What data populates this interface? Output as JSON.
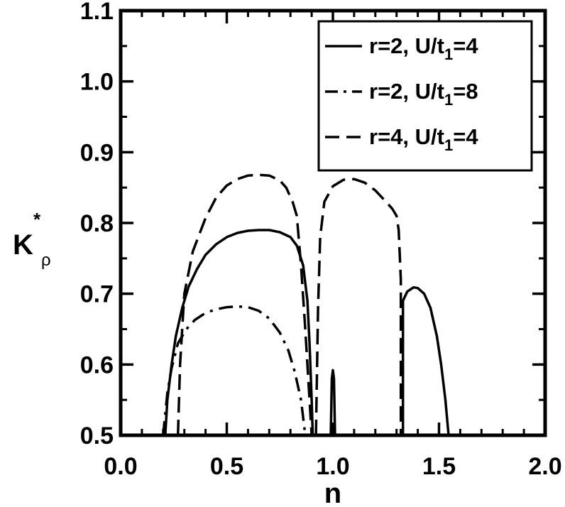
{
  "chart_data": {
    "type": "line",
    "xlabel": "n",
    "ylabel": {
      "main": "K",
      "sup": "*",
      "sub": "ρ"
    },
    "xlim": [
      0.0,
      2.0
    ],
    "ylim": [
      0.5,
      1.1
    ],
    "x_ticks": [
      {
        "value": 0.0,
        "label": "0.0"
      },
      {
        "value": 0.5,
        "label": "0.5"
      },
      {
        "value": 1.0,
        "label": "1.0"
      },
      {
        "value": 1.5,
        "label": "1.5"
      },
      {
        "value": 2.0,
        "label": "2.0"
      }
    ],
    "y_ticks": [
      {
        "value": 0.5,
        "label": "0.5"
      },
      {
        "value": 0.6,
        "label": "0.6"
      },
      {
        "value": 0.7,
        "label": "0.7"
      },
      {
        "value": 0.8,
        "label": "0.8"
      },
      {
        "value": 0.9,
        "label": "0.9"
      },
      {
        "value": 1.0,
        "label": "1.0"
      },
      {
        "value": 1.1,
        "label": "1.1"
      }
    ],
    "x_minor_step": 0.1,
    "y_minor_step": 0.05,
    "grid": false,
    "legend_position": "top-right",
    "series": [
      {
        "name": {
          "main": "r=2, U/t",
          "sub": "1",
          "tail": "=4"
        },
        "style": "solid",
        "segments": [
          [
            [
              0.21,
              0.5
            ],
            [
              0.22,
              0.55
            ],
            [
              0.24,
              0.6
            ],
            [
              0.26,
              0.64
            ],
            [
              0.29,
              0.68
            ],
            [
              0.32,
              0.71
            ],
            [
              0.36,
              0.735
            ],
            [
              0.4,
              0.755
            ],
            [
              0.45,
              0.77
            ],
            [
              0.5,
              0.78
            ],
            [
              0.55,
              0.786
            ],
            [
              0.6,
              0.789
            ],
            [
              0.65,
              0.79
            ],
            [
              0.7,
              0.79
            ],
            [
              0.75,
              0.787
            ],
            [
              0.8,
              0.78
            ],
            [
              0.83,
              0.768
            ],
            [
              0.86,
              0.74
            ],
            [
              0.88,
              0.69
            ],
            [
              0.89,
              0.63
            ],
            [
              0.9,
              0.55
            ],
            [
              0.905,
              0.5
            ]
          ],
          [
            [
              0.99,
              0.5
            ],
            [
              0.995,
              0.58
            ],
            [
              1.0,
              0.592
            ],
            [
              1.005,
              0.58
            ],
            [
              1.01,
              0.5
            ]
          ],
          [
            [
              1.33,
              0.5
            ],
            [
              1.33,
              0.69
            ],
            [
              1.35,
              0.703
            ],
            [
              1.38,
              0.709
            ],
            [
              1.4,
              0.708
            ],
            [
              1.43,
              0.7
            ],
            [
              1.46,
              0.68
            ],
            [
              1.49,
              0.64
            ],
            [
              1.51,
              0.6
            ],
            [
              1.53,
              0.55
            ],
            [
              1.545,
              0.5
            ]
          ]
        ]
      },
      {
        "name": {
          "main": "r=2, U/t",
          "sub": "1",
          "tail": "=8"
        },
        "style": "dashdot",
        "segments": [
          [
            [
              0.2,
              0.5
            ],
            [
              0.22,
              0.56
            ],
            [
              0.24,
              0.595
            ],
            [
              0.27,
              0.63
            ],
            [
              0.31,
              0.65
            ],
            [
              0.35,
              0.663
            ],
            [
              0.4,
              0.673
            ],
            [
              0.45,
              0.678
            ],
            [
              0.5,
              0.681
            ],
            [
              0.55,
              0.682
            ],
            [
              0.6,
              0.681
            ],
            [
              0.65,
              0.676
            ],
            [
              0.7,
              0.665
            ],
            [
              0.75,
              0.645
            ],
            [
              0.79,
              0.62
            ],
            [
              0.82,
              0.59
            ],
            [
              0.85,
              0.55
            ],
            [
              0.87,
              0.5
            ]
          ]
        ]
      },
      {
        "name": {
          "main": "r=4, U/t",
          "sub": "1",
          "tail": "=4"
        },
        "style": "dashed",
        "segments": [
          [
            [
              0.27,
              0.5
            ],
            [
              0.28,
              0.6
            ],
            [
              0.3,
              0.7
            ],
            [
              0.34,
              0.76
            ],
            [
              0.4,
              0.807
            ],
            [
              0.45,
              0.836
            ],
            [
              0.5,
              0.853
            ],
            [
              0.55,
              0.862
            ],
            [
              0.6,
              0.867
            ],
            [
              0.65,
              0.868
            ],
            [
              0.7,
              0.867
            ],
            [
              0.75,
              0.86
            ],
            [
              0.78,
              0.85
            ],
            [
              0.81,
              0.83
            ],
            [
              0.83,
              0.81
            ],
            [
              0.85,
              0.74
            ],
            [
              0.87,
              0.65
            ],
            [
              0.89,
              0.55
            ],
            [
              0.9,
              0.5
            ]
          ],
          [
            [
              0.92,
              0.5
            ],
            [
              0.93,
              0.68
            ],
            [
              0.94,
              0.78
            ],
            [
              0.96,
              0.83
            ],
            [
              1.0,
              0.852
            ],
            [
              1.05,
              0.861
            ],
            [
              1.1,
              0.862
            ],
            [
              1.15,
              0.857
            ],
            [
              1.2,
              0.846
            ],
            [
              1.25,
              0.83
            ],
            [
              1.28,
              0.82
            ],
            [
              1.3,
              0.81
            ],
            [
              1.31,
              0.79
            ],
            [
              1.32,
              0.72
            ],
            [
              1.32,
              0.5
            ]
          ]
        ]
      }
    ]
  }
}
